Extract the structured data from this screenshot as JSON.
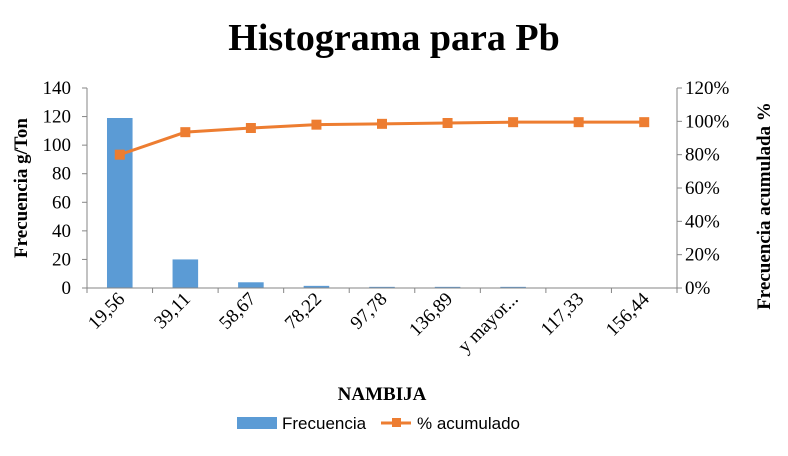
{
  "chart_data": {
    "type": "bar",
    "title": "Histograma para Pb",
    "xlabel": "NAMBIJA",
    "ylabel": "Frecuencia g/Ton",
    "y2label": "Frecuencia acumulada %",
    "categories": [
      "19,56",
      "39,11",
      "58,67",
      "78,22",
      "97,78",
      "136,89",
      "y mayor...",
      "117,33",
      "156,44"
    ],
    "ylim": [
      0,
      140
    ],
    "yticks": [
      "0",
      "20",
      "40",
      "60",
      "80",
      "100",
      "120",
      "140"
    ],
    "ytick_values": [
      0,
      20,
      40,
      60,
      80,
      100,
      120,
      140
    ],
    "y2lim": [
      0,
      1.2
    ],
    "y2ticks": [
      "0%",
      "20%",
      "40%",
      "60%",
      "80%",
      "100%",
      "120%"
    ],
    "y2tick_values": [
      0,
      0.2,
      0.4,
      0.6,
      0.8,
      1.0,
      1.2
    ],
    "series": [
      {
        "name": "Frecuencia",
        "type": "bar",
        "axis": "left",
        "color": "#5b9bd5",
        "values": [
          119,
          20,
          4,
          1.5,
          0.8,
          0.8,
          0.8,
          0,
          0
        ]
      },
      {
        "name": "% acumulado",
        "type": "line",
        "axis": "right",
        "color": "#ed7d31",
        "values": [
          0.8,
          0.935,
          0.96,
          0.98,
          0.985,
          0.99,
          0.995,
          0.995,
          0.995
        ]
      }
    ],
    "grid": false,
    "legend": "bottom"
  }
}
